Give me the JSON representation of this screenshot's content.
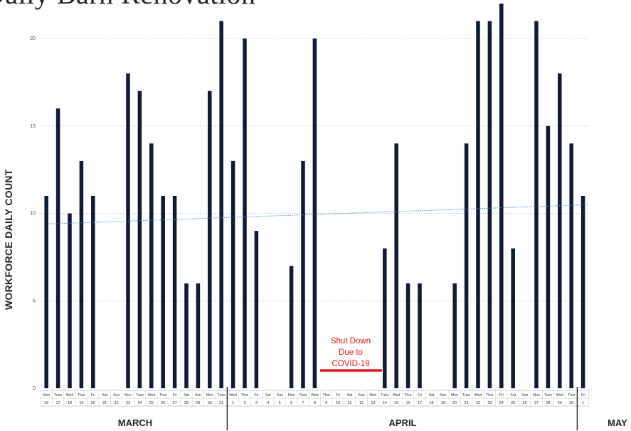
{
  "title": "Daily Barn Renovation",
  "chart_data": {
    "type": "bar",
    "ylabel": "WORKFORCE DAILY COUNT",
    "ylim": [
      0,
      22
    ],
    "yticks": [
      0,
      5,
      10,
      15,
      20
    ],
    "grid": true,
    "bar_color": "#0f1a33",
    "trend_color": "#4a90d9",
    "trendline": {
      "start": 9.4,
      "end": 10.5
    },
    "days": [
      "Mon",
      "Tues",
      "Wed",
      "Thur",
      "Fri",
      "Sat",
      "Sun",
      "Mon",
      "Tues",
      "Wed",
      "Thur",
      "Fri",
      "Sat",
      "Sun",
      "Mon",
      "Tues",
      "Wed",
      "Thur",
      "Fri",
      "Sat",
      "Sun",
      "Mon",
      "Tues",
      "Wed",
      "Thur",
      "Fri",
      "Sat",
      "Sun",
      "Mon",
      "Tues",
      "Wed",
      "Thur",
      "Fri",
      "Sat",
      "Sun",
      "Mon",
      "Tues",
      "Wed",
      "Thur",
      "Fri",
      "Sat",
      "Sun",
      "Mon",
      "Tues",
      "Wed",
      "Thur",
      "Fri"
    ],
    "dates": [
      "16",
      "17",
      "18",
      "19",
      "20",
      "21",
      "22",
      "23",
      "24",
      "25",
      "26",
      "27",
      "28",
      "29",
      "30",
      "31",
      "1",
      "2",
      "3",
      "4",
      "5",
      "6",
      "7",
      "8",
      "9",
      "10",
      "11",
      "12",
      "13",
      "14",
      "15",
      "16",
      "17",
      "18",
      "19",
      "20",
      "21",
      "22",
      "23",
      "24",
      "25",
      "26",
      "27",
      "28",
      "29",
      "30",
      "1"
    ],
    "values": [
      11,
      16,
      10,
      13,
      11,
      0,
      0,
      18,
      17,
      14,
      11,
      11,
      6,
      6,
      17,
      21,
      13,
      20,
      9,
      0,
      0,
      7,
      13,
      20,
      0,
      0,
      0,
      0,
      0,
      8,
      14,
      6,
      6,
      0,
      0,
      6,
      14,
      21,
      21,
      22,
      8,
      0,
      21,
      15,
      18,
      14,
      11
    ],
    "months": [
      "MARCH",
      "APRIL",
      "MAY"
    ],
    "annotation": [
      "Shut Down",
      "Due to",
      "COVID-19"
    ]
  }
}
